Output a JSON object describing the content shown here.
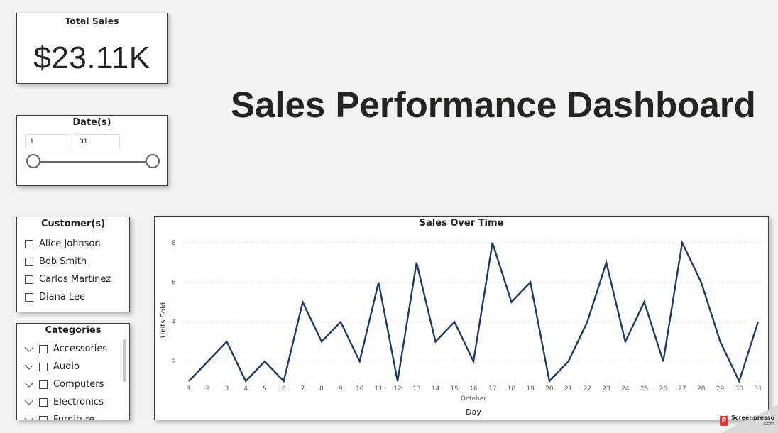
{
  "kpi": {
    "title": "Total Sales",
    "value": "$23.11K"
  },
  "dashboard": {
    "title": "Sales Performance Dashboard"
  },
  "date_slicer": {
    "title": "Date(s)",
    "start": "1",
    "end": "31"
  },
  "customers": {
    "title": "Customer(s)",
    "items": [
      "Alice Johnson",
      "Bob Smith",
      "Carlos Martinez",
      "Diana Lee"
    ]
  },
  "categories": {
    "title": "Categories",
    "items": [
      "Accessories",
      "Audio",
      "Computers",
      "Electronics",
      "Furniture"
    ]
  },
  "chart_data": {
    "type": "line",
    "title": "Sales Over Time",
    "xlabel": "Day",
    "x_group_label": "October",
    "ylabel": "Units Sold",
    "x": [
      1,
      2,
      3,
      4,
      5,
      6,
      7,
      8,
      9,
      10,
      11,
      12,
      13,
      14,
      15,
      16,
      17,
      18,
      19,
      20,
      21,
      22,
      23,
      24,
      25,
      26,
      27,
      28,
      29,
      30,
      31
    ],
    "series": [
      {
        "values": [
          1,
          2,
          3,
          1,
          2,
          1,
          5,
          3,
          4,
          2,
          6,
          1,
          7,
          3,
          4,
          2,
          8,
          5,
          6,
          1,
          2,
          4,
          7,
          3,
          5,
          2,
          8,
          6,
          3,
          1,
          4
        ]
      }
    ],
    "y_ticks": [
      2,
      4,
      6,
      8
    ],
    "ylim": [
      1,
      8.25
    ],
    "grid": true,
    "line_color": "#1f3b63"
  },
  "watermark": {
    "text": "Screenpresso",
    "sub": ".com"
  }
}
